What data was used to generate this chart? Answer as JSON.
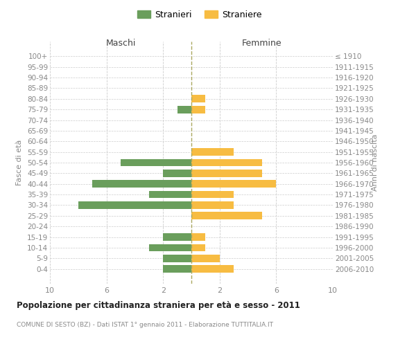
{
  "age_groups": [
    "100+",
    "95-99",
    "90-94",
    "85-89",
    "80-84",
    "75-79",
    "70-74",
    "65-69",
    "60-64",
    "55-59",
    "50-54",
    "45-49",
    "40-44",
    "35-39",
    "30-34",
    "25-29",
    "20-24",
    "15-19",
    "10-14",
    "5-9",
    "0-4"
  ],
  "birth_years": [
    "≤ 1910",
    "1911-1915",
    "1916-1920",
    "1921-1925",
    "1926-1930",
    "1931-1935",
    "1936-1940",
    "1941-1945",
    "1946-1950",
    "1951-1955",
    "1956-1960",
    "1961-1965",
    "1966-1970",
    "1971-1975",
    "1976-1980",
    "1981-1985",
    "1986-1990",
    "1991-1995",
    "1996-2000",
    "2001-2005",
    "2006-2010"
  ],
  "maschi": [
    0,
    0,
    0,
    0,
    0,
    1,
    0,
    0,
    0,
    0,
    5,
    2,
    7,
    3,
    8,
    0,
    0,
    2,
    3,
    2,
    2
  ],
  "femmine": [
    0,
    0,
    0,
    0,
    1,
    1,
    0,
    0,
    0,
    3,
    5,
    5,
    6,
    3,
    3,
    5,
    0,
    1,
    1,
    2,
    3
  ],
  "color_maschi": "#6a9e5c",
  "color_femmine": "#f7bc42",
  "title": "Popolazione per cittadinanza straniera per età e sesso - 2011",
  "subtitle": "COMUNE DI SESTO (BZ) - Dati ISTAT 1° gennaio 2011 - Elaborazione TUTTITALIA.IT",
  "header_left": "Maschi",
  "header_right": "Femmine",
  "ylabel_left": "Fasce di età",
  "ylabel_right": "Anni di nascita",
  "legend_maschi": "Stranieri",
  "legend_femmine": "Straniere",
  "xlim": 10,
  "background_color": "#ffffff",
  "grid_color": "#cccccc",
  "bar_height": 0.7
}
